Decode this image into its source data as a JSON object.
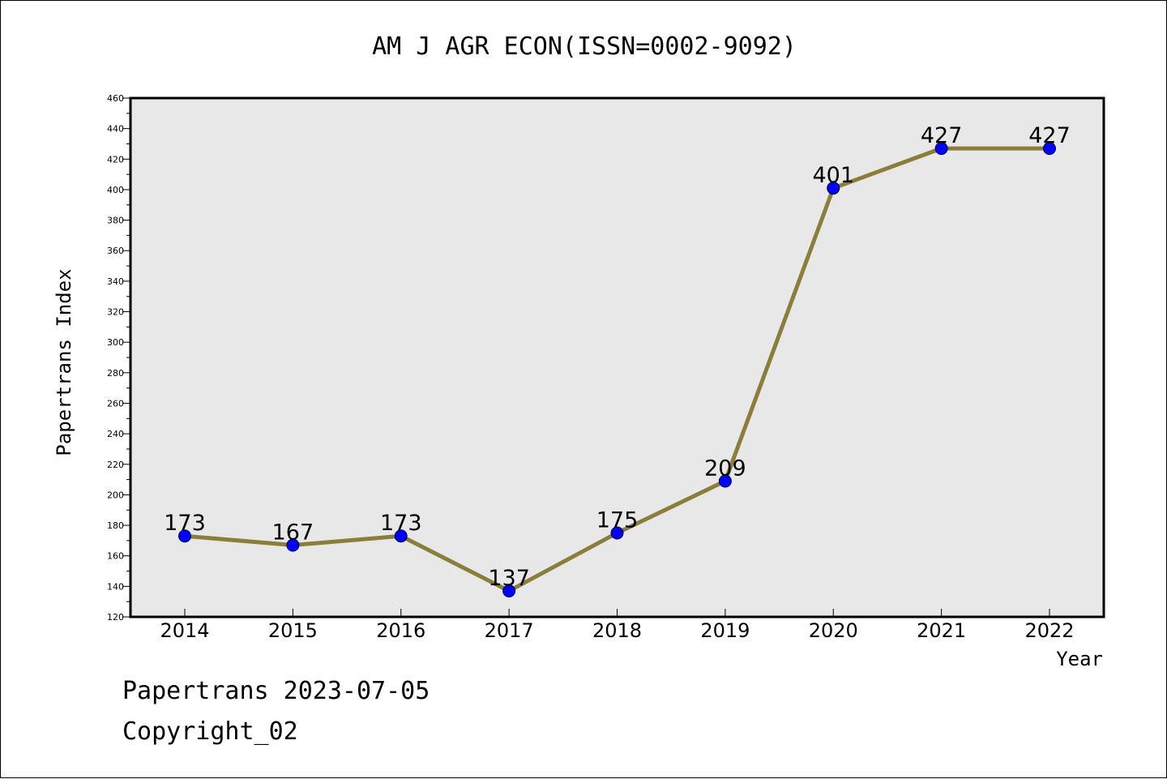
{
  "chart_data": {
    "type": "line",
    "title": "AM J AGR ECON(ISSN=0002-9092)",
    "xlabel": "Year",
    "ylabel": "Papertrans Index",
    "x": [
      "2014",
      "2015",
      "2016",
      "2017",
      "2018",
      "2019",
      "2020",
      "2021",
      "2022"
    ],
    "series": [
      {
        "values": [
          173,
          167,
          173,
          137,
          175,
          209,
          401,
          427,
          427
        ]
      }
    ],
    "data_labels": [
      "173",
      "167",
      "173",
      "137",
      "175",
      "209",
      "401",
      "427",
      "427"
    ],
    "ylim": [
      120,
      460
    ],
    "yticks": [
      "120",
      "140",
      "160",
      "180",
      "200",
      "220",
      "240",
      "260",
      "280",
      "300",
      "320",
      "340",
      "360",
      "380",
      "400",
      "420",
      "440",
      "460"
    ],
    "grid": false,
    "line_color": "#8B7D3A",
    "marker_color": "#0000FF",
    "plot_background": "#E8E8E8"
  },
  "footer": {
    "line1": "Papertrans 2023-07-05",
    "line2": "Copyright_02"
  }
}
